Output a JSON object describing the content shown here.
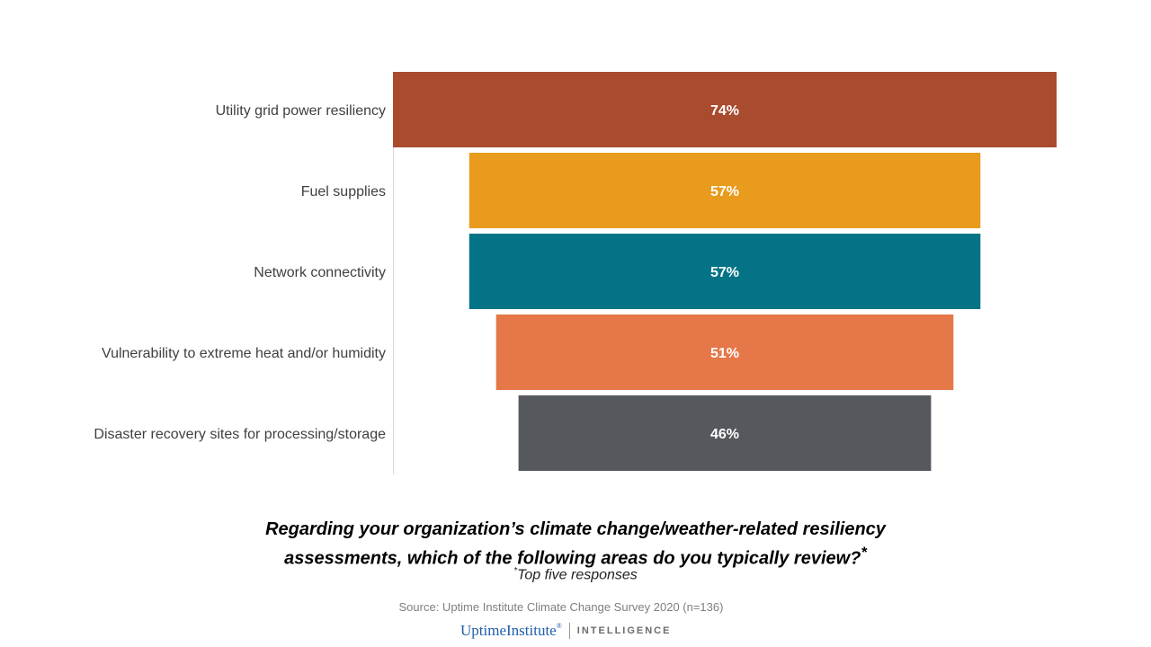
{
  "chart_data": {
    "type": "bar",
    "orientation": "horizontal-funnel",
    "categories": [
      "Utility grid power resiliency",
      "Fuel supplies",
      "Network connectivity",
      "Vulnerability to extreme heat and/or humidity",
      "Disaster recovery sites for processing/storage"
    ],
    "values": [
      74,
      57,
      57,
      51,
      46
    ],
    "value_labels": [
      "74%",
      "57%",
      "57%",
      "51%",
      "46%"
    ],
    "colors": [
      "#a84b2e",
      "#e89b1c",
      "#047386",
      "#e67749",
      "#55585d"
    ],
    "unit": "%",
    "xlim": [
      0,
      74
    ],
    "title": "",
    "xlabel": "",
    "ylabel": ""
  },
  "question": {
    "line1": "Regarding your organization’s climate change/weather-related  resiliency",
    "line2": "assessments, which of the following areas do you typically review?",
    "asterisk": "*"
  },
  "note": {
    "asterisk": "*",
    "text": "Top five responses"
  },
  "source": "Source: Uptime Institute Climate Change Survey 2020 (n=136)",
  "brand": {
    "name": "UptimeInstitute",
    "registered": "®",
    "tagline": "INTELLIGENCE"
  }
}
